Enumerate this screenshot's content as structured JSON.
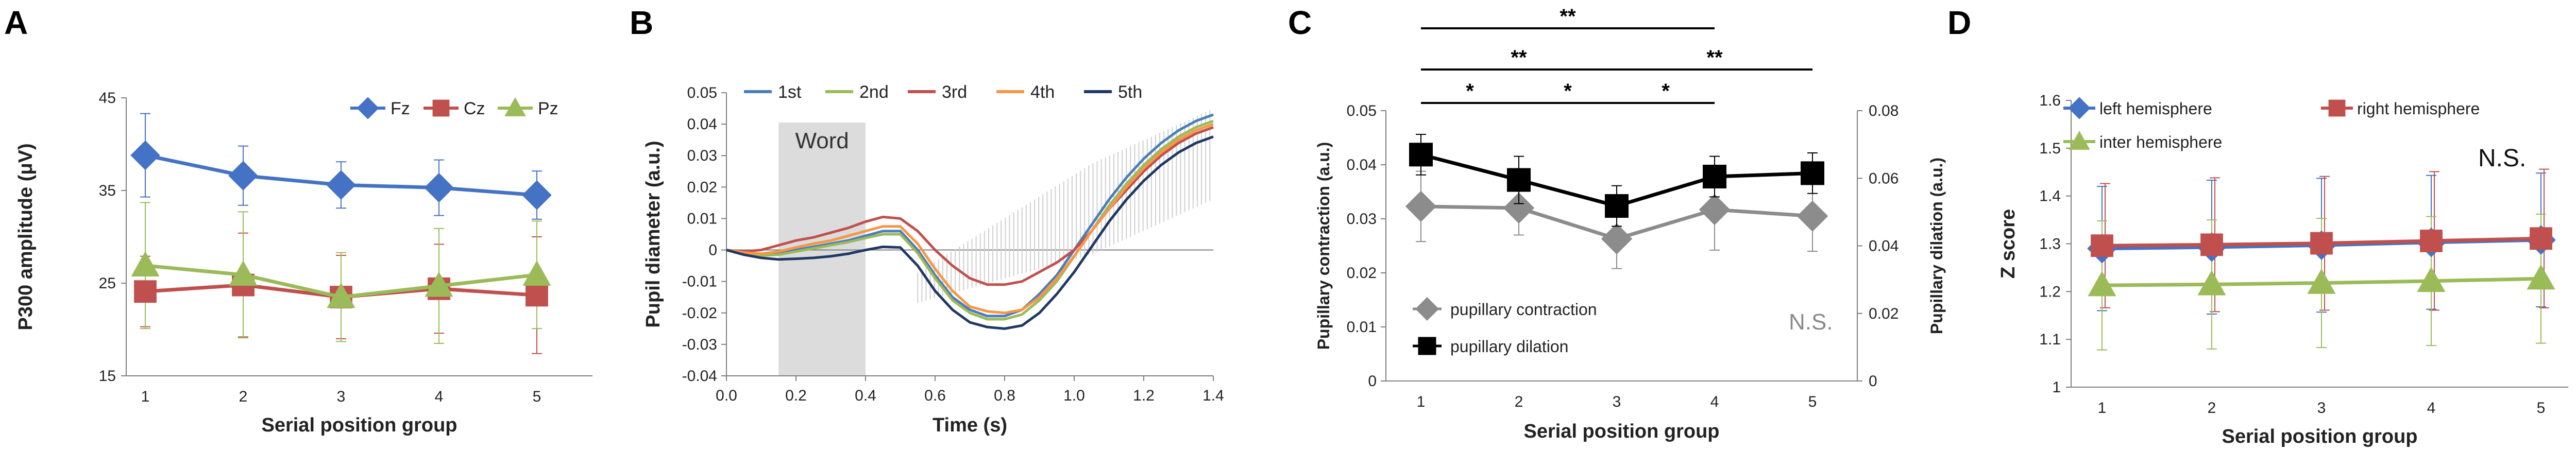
{
  "chart_data": [
    {
      "type": "line",
      "panel": "A",
      "xlabel": "Serial position group",
      "ylabel": "P300 amplitude (μV)",
      "categories": [
        "1",
        "2",
        "3",
        "4",
        "5"
      ],
      "ylim": [
        15,
        45
      ],
      "yticks": [
        "15",
        "25",
        "35",
        "45"
      ],
      "legend_position": "top-right",
      "series": [
        {
          "name": "Fz",
          "color": "#4472C4",
          "marker": "diamond",
          "values": [
            38.8,
            36.6,
            35.6,
            35.3,
            34.5
          ],
          "err": [
            4.5,
            3.2,
            2.5,
            3.0,
            2.6
          ]
        },
        {
          "name": "Cz",
          "color": "#C0504D",
          "marker": "square",
          "values": [
            24.1,
            24.8,
            23.5,
            24.4,
            23.7
          ],
          "err": [
            3.8,
            5.6,
            4.5,
            4.8,
            6.3
          ]
        },
        {
          "name": "Pz",
          "color": "#9BBB59",
          "marker": "triangle",
          "values": [
            26.9,
            25.9,
            23.5,
            24.7,
            25.9
          ],
          "err": [
            6.8,
            6.8,
            4.8,
            6.2,
            5.8
          ]
        }
      ]
    },
    {
      "type": "line",
      "panel": "B",
      "xlabel": "Time (s)",
      "ylabel": "Pupil diameter (a.u.)",
      "xlim": [
        0.0,
        1.4
      ],
      "ylim": [
        -0.04,
        0.05
      ],
      "xticks": [
        "0.0",
        "0.2",
        "0.4",
        "0.6",
        "0.8",
        "1.0",
        "1.2",
        "1.4"
      ],
      "yticks": [
        "-0.04",
        "-0.03",
        "-0.02",
        "-0.01",
        "0",
        "0.01",
        "0.02",
        "0.03",
        "0.04",
        "0.05"
      ],
      "shaded_region": {
        "label": "Word",
        "x_start": 0.15,
        "x_end": 0.4
      },
      "legend_position": "top",
      "x": [
        0,
        0.05,
        0.1,
        0.15,
        0.2,
        0.25,
        0.3,
        0.35,
        0.4,
        0.45,
        0.5,
        0.55,
        0.6,
        0.65,
        0.7,
        0.75,
        0.8,
        0.85,
        0.9,
        0.95,
        1.0,
        1.05,
        1.1,
        1.15,
        1.2,
        1.25,
        1.3,
        1.35,
        1.4
      ],
      "series": [
        {
          "name": "1st",
          "color": "#4A7EBB",
          "values": [
            0.0,
            -0.001,
            -0.0015,
            -0.0012,
            0.0,
            0.001,
            0.002,
            0.003,
            0.0045,
            0.006,
            0.006,
            0.0,
            -0.008,
            -0.015,
            -0.019,
            -0.021,
            -0.021,
            -0.019,
            -0.014,
            -0.008,
            0.0,
            0.008,
            0.016,
            0.023,
            0.029,
            0.034,
            0.038,
            0.041,
            0.043
          ]
        },
        {
          "name": "2nd",
          "color": "#9BBB59",
          "values": [
            0.0,
            -0.0012,
            -0.0018,
            -0.0015,
            -0.0005,
            0.0005,
            0.0015,
            0.0025,
            0.0038,
            0.005,
            0.005,
            -0.001,
            -0.009,
            -0.016,
            -0.02,
            -0.022,
            -0.022,
            -0.0205,
            -0.016,
            -0.01,
            -0.002,
            0.006,
            0.014,
            0.021,
            0.027,
            0.032,
            0.036,
            0.039,
            0.041
          ]
        },
        {
          "name": "3rd",
          "color": "#C0504D",
          "values": [
            0.0,
            -0.0005,
            0.0,
            0.0015,
            0.003,
            0.004,
            0.0055,
            0.007,
            0.009,
            0.0105,
            0.01,
            0.006,
            0.0,
            -0.005,
            -0.009,
            -0.011,
            -0.011,
            -0.01,
            -0.007,
            -0.004,
            0.0,
            0.006,
            0.013,
            0.019,
            0.025,
            0.03,
            0.034,
            0.037,
            0.039
          ]
        },
        {
          "name": "4th",
          "color": "#F79646",
          "values": [
            0.0,
            -0.0008,
            -0.0012,
            -0.0005,
            0.0008,
            0.002,
            0.003,
            0.0045,
            0.006,
            0.0075,
            0.0075,
            0.002,
            -0.006,
            -0.013,
            -0.018,
            -0.0195,
            -0.02,
            -0.019,
            -0.015,
            -0.009,
            -0.002,
            0.006,
            0.013,
            0.02,
            0.026,
            0.031,
            0.035,
            0.038,
            0.04
          ]
        },
        {
          "name": "5th",
          "color": "#1F3864",
          "values": [
            0.0,
            -0.0015,
            -0.0025,
            -0.003,
            -0.0028,
            -0.0025,
            -0.002,
            -0.0012,
            0.0,
            0.001,
            0.0008,
            -0.005,
            -0.013,
            -0.019,
            -0.023,
            -0.0245,
            -0.025,
            -0.024,
            -0.02,
            -0.014,
            -0.007,
            0.001,
            0.009,
            0.016,
            0.022,
            0.027,
            0.031,
            0.034,
            0.036
          ]
        }
      ]
    },
    {
      "type": "line",
      "panel": "C",
      "xlabel": "Serial position group",
      "ylabel": "Pupillary contraction (a.u.)",
      "ylabel_right": "Pupillary dilation (a.u.)",
      "categories": [
        "1",
        "2",
        "3",
        "4",
        "5"
      ],
      "ylim": [
        0,
        0.05
      ],
      "ylim_right": [
        0,
        0.08
      ],
      "yticks": [
        "0",
        "0.01",
        "0.02",
        "0.03",
        "0.04",
        "0.05"
      ],
      "yticks_right": [
        "0",
        "0.02",
        "0.04",
        "0.06",
        "0.08"
      ],
      "legend_position": "bottom-left",
      "annotation": "N.S.",
      "significance": [
        {
          "from": "1",
          "to": "2",
          "label": "*"
        },
        {
          "from": "2",
          "to": "3",
          "label": "*"
        },
        {
          "from": "3",
          "to": "4",
          "label": "*"
        },
        {
          "from": "1",
          "to": "3",
          "label": "**"
        },
        {
          "from": "3",
          "to": "5",
          "label": "**"
        },
        {
          "from": "1",
          "to": "4",
          "label": "**"
        }
      ],
      "series": [
        {
          "name": "pupillary contraction",
          "color": "#8C8C8C",
          "marker": "diamond",
          "axis": "left",
          "values": [
            0.0323,
            0.032,
            0.0263,
            0.0317,
            0.0305
          ],
          "err": [
            0.0065,
            0.005,
            0.0055,
            0.0075,
            0.0065
          ]
        },
        {
          "name": "pupillary dilation",
          "color": "#000000",
          "marker": "square",
          "axis": "right",
          "values": [
            0.067,
            0.0595,
            0.0518,
            0.0605,
            0.0615
          ],
          "err": [
            0.006,
            0.007,
            0.006,
            0.006,
            0.006
          ]
        }
      ]
    },
    {
      "type": "line",
      "panel": "D",
      "xlabel": "Serial position group",
      "ylabel": "Z score",
      "categories": [
        "1",
        "2",
        "3",
        "4",
        "5"
      ],
      "ylim": [
        1.0,
        1.6
      ],
      "yticks": [
        "1",
        "1.1",
        "1.2",
        "1.3",
        "1.4",
        "1.5",
        "1.6"
      ],
      "legend_position": "top",
      "annotation": "N.S.",
      "series": [
        {
          "name": "left hemisphere",
          "color": "#4472C4",
          "marker": "diamond",
          "values": [
            1.29,
            1.293,
            1.297,
            1.303,
            1.308
          ],
          "err": [
            0.13,
            0.14,
            0.14,
            0.14,
            0.14
          ]
        },
        {
          "name": "right hemisphere",
          "color": "#C0504D",
          "marker": "square",
          "values": [
            1.296,
            1.298,
            1.301,
            1.306,
            1.311
          ],
          "err": [
            0.13,
            0.14,
            0.14,
            0.145,
            0.145
          ]
        },
        {
          "name": "inter hemisphere",
          "color": "#9BBB59",
          "marker": "triangle",
          "values": [
            1.213,
            1.215,
            1.218,
            1.222,
            1.227
          ],
          "err": [
            0.135,
            0.135,
            0.135,
            0.135,
            0.135
          ]
        }
      ]
    }
  ]
}
